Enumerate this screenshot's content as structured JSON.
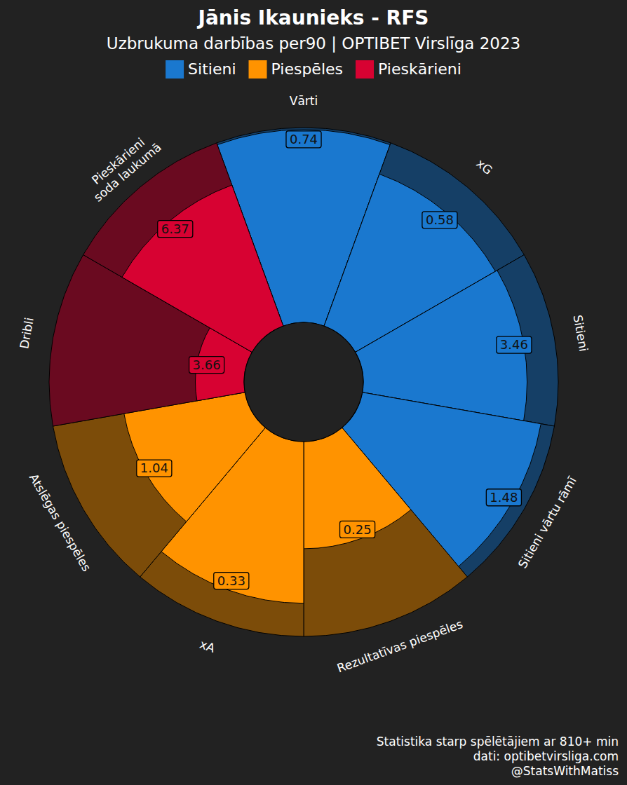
{
  "chart_data": {
    "type": "pizza",
    "title": "Jānis Ikaunieks - RFS",
    "subtitle": "Uzbrukuma darbības per90 | OPTIBET Virslīga 2023",
    "annotations": [
      "Statistika starp spēlētājiem ar 810+ min",
      "dati: optibetvirsliga.com",
      "@StatsWithMatiss"
    ],
    "rlim": [
      0,
      100
    ],
    "tick_labels": false,
    "data_labels": true,
    "legend": "top",
    "series": [
      {
        "name": "Sitieni",
        "color": "#1a78cf",
        "categories": [
          "Vārti",
          "xG",
          "Sitieni",
          "Sitieni vārtu rāmī"
        ],
        "values": [
          0.74,
          0.58,
          3.46,
          1.48
        ],
        "percentiles": [
          99,
          83,
          84,
          93
        ]
      },
      {
        "name": "Piespēles",
        "color": "#ff9300",
        "categories": [
          "Rezultatīvas piespēles",
          "xA",
          "Atslēgas piespēles"
        ],
        "values": [
          0.25,
          0.33,
          1.04
        ],
        "percentiles": [
          55,
          83,
          63
        ]
      },
      {
        "name": "Pieskārieni",
        "color": "#d70232",
        "categories": [
          "Dribli",
          "Pieskārieni\nsoda laukumā"
        ],
        "values": [
          3.66,
          6.37
        ],
        "percentiles": [
          25,
          77
        ]
      }
    ]
  }
}
